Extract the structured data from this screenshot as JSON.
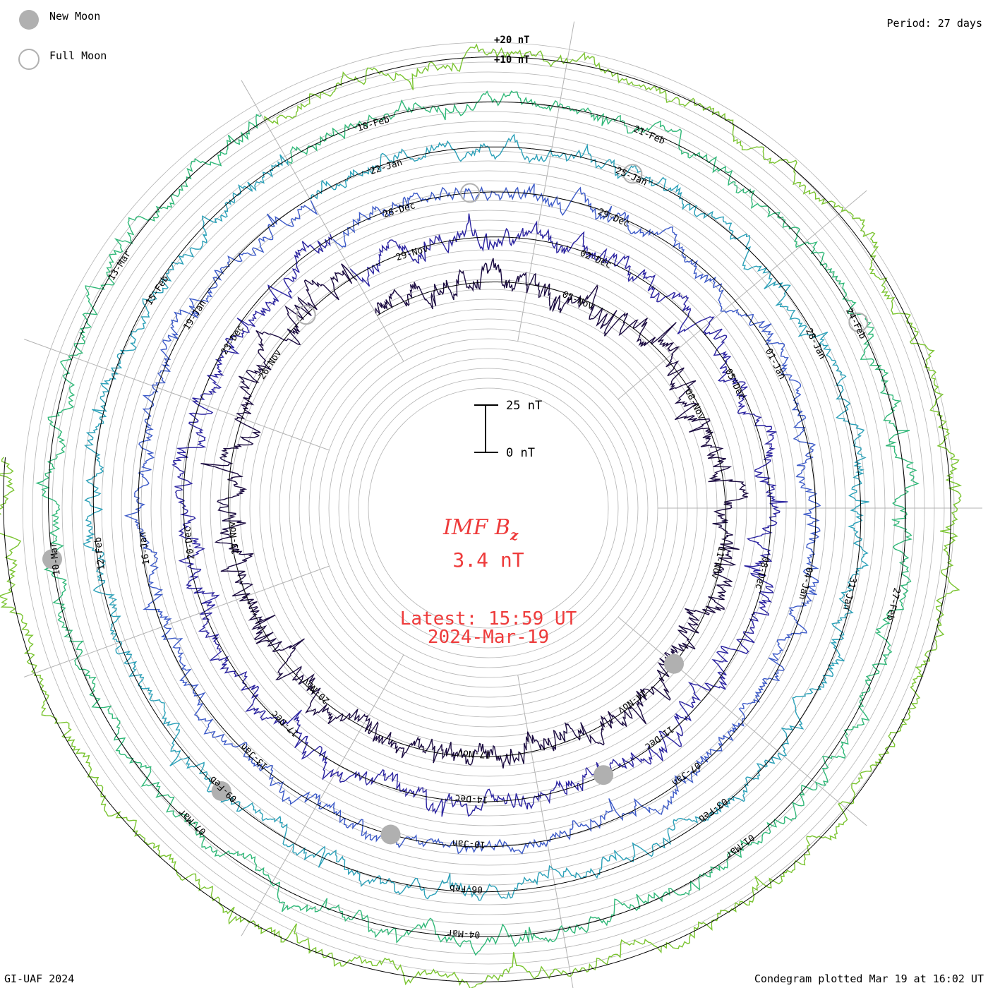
{
  "legend": [
    {
      "label": "New Moon",
      "symbol": "filled-circle"
    },
    {
      "label": "Full Moon",
      "symbol": "open-circle"
    }
  ],
  "period_label": "Period: 27 days",
  "footer_left": "GI-UAF 2024",
  "footer_right": "Condegram plotted Mar 19 at 16:02 UT",
  "title_quantity": "IMF B",
  "title_subscript": "z",
  "current_value": "3.4 nT",
  "latest_label": "Latest: 15:59 UT",
  "latest_date": "2024-Mar-19",
  "scale_bar": {
    "top_label": "25 nT",
    "bottom_label": "0 nT"
  },
  "ring_labels": [
    "+20 nT",
    "+10 nT"
  ],
  "colors": {
    "accent": "#ee3b3b",
    "grid": "#b3b3b3",
    "zero": "#000000",
    "moon": "#b0b0b0"
  },
  "chart_data": {
    "type": "polar-spiral",
    "title": "IMF Bz",
    "units": "nT",
    "period_days": 27,
    "date_labels": [
      "05-Nov",
      "08-Nov",
      "11-Nov",
      "14-Nov",
      "17-Nov",
      "20-Nov",
      "23-Nov",
      "26-Nov",
      "29-Nov",
      "02-Dec",
      "05-Dec",
      "08-Dec",
      "11-Dec",
      "14-Dec",
      "17-Dec",
      "20-Dec",
      "23-Dec",
      "26-Dec",
      "29-Dec",
      "01-Jan",
      "04-Jan",
      "07-Jan",
      "10-Jan",
      "13-Jan",
      "16-Jan",
      "19-Jan",
      "22-Jan",
      "25-Jan",
      "28-Jan",
      "31-Jan",
      "03-Feb",
      "06-Feb",
      "09-Feb",
      "12-Feb",
      "15-Feb",
      "18-Feb",
      "21-Feb",
      "24-Feb",
      "27-Feb",
      "01-Mar",
      "04-Mar",
      "07-Mar",
      "10-Mar",
      "13-Mar"
    ],
    "series": [
      {
        "rotation": 1,
        "start": "2023-Nov-01",
        "end": "2023-Nov-28",
        "color": "#1a0a40",
        "mean_nT": 0.0,
        "amplitude_nT": 6
      },
      {
        "rotation": 2,
        "start": "2023-Nov-28",
        "end": "2023-Dec-25",
        "color": "#2a22a0",
        "mean_nT": 0.0,
        "amplitude_nT": 5
      },
      {
        "rotation": 3,
        "start": "2023-Dec-25",
        "end": "2024-Jan-21",
        "color": "#3c5ac8",
        "mean_nT": 0.0,
        "amplitude_nT": 4
      },
      {
        "rotation": 4,
        "start": "2024-Jan-21",
        "end": "2024-Feb-17",
        "color": "#2aa0b8",
        "mean_nT": 0.0,
        "amplitude_nT": 4
      },
      {
        "rotation": 5,
        "start": "2024-Feb-17",
        "end": "2024-Mar-15",
        "color": "#30b878",
        "mean_nT": 0.0,
        "amplitude_nT": 4
      },
      {
        "rotation": 6,
        "start": "2024-Mar-15",
        "end": "2024-Mar-19",
        "color": "#7ac430",
        "mean_nT": 0.0,
        "amplitude_nT": 4
      }
    ],
    "moon_phases": {
      "new_moon": [
        "2023-Nov-13",
        "2023-Dec-12",
        "2024-Jan-11",
        "2024-Feb-09",
        "2024-Mar-10"
      ],
      "full_moon": [
        "2023-Nov-27",
        "2023-Dec-27",
        "2024-Jan-25",
        "2024-Feb-24"
      ]
    },
    "latest_value_nT": 3.4
  }
}
